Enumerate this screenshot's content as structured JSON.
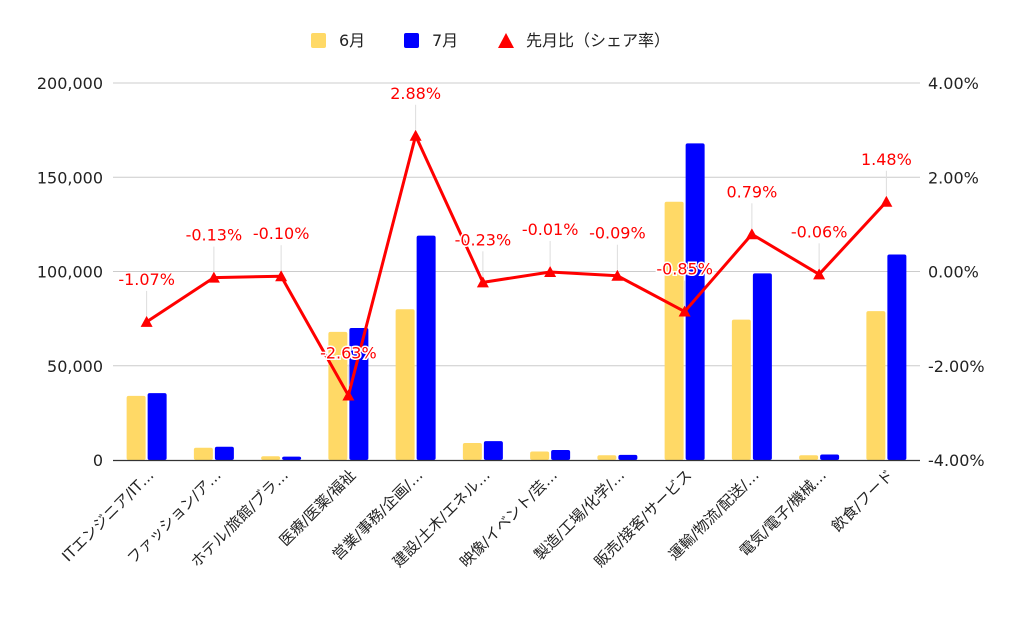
{
  "chart_data": {
    "type": "bar",
    "legend_position": "top",
    "grid": true,
    "categories": [
      "ITエンジニア/IT…",
      "ファッション/ア…",
      "ホテル/旅館/ブラ…",
      "医療/医薬/福祉",
      "営業/事務/企画/…",
      "建設/土木/エネル…",
      "映像/イベント/芸…",
      "製造/工場/化学/…",
      "販売/接客/サービス",
      "運輸/物流/配送/…",
      "電気/電子/機械…",
      "飲食/フード"
    ],
    "series": [
      {
        "name": "6月",
        "type": "bar",
        "axis": "left",
        "color": "#ffd966",
        "values": [
          34000,
          6500,
          2000,
          68000,
          80000,
          9000,
          4500,
          2500,
          137000,
          74500,
          2500,
          79000
        ]
      },
      {
        "name": "7月",
        "type": "bar",
        "axis": "left",
        "color": "#0000ff",
        "values": [
          35500,
          7000,
          1800,
          70000,
          119000,
          10000,
          5300,
          2700,
          168000,
          99000,
          2900,
          109000
        ]
      },
      {
        "name": "先月比（シェア率）",
        "type": "line",
        "axis": "right",
        "color": "#ff0000",
        "values": [
          -1.07,
          -0.13,
          -0.1,
          -2.63,
          2.88,
          -0.23,
          -0.01,
          -0.09,
          -0.85,
          0.79,
          -0.06,
          1.48
        ],
        "labels": [
          "-1.07%",
          "-0.13%",
          "-0.10%",
          "-2.63%",
          "2.88%",
          "-0.23%",
          "-0.01%",
          "-0.09%",
          "-0.85%",
          "0.79%",
          "-0.06%",
          "1.48%"
        ]
      }
    ],
    "y_left": {
      "lim": [
        0,
        200000
      ],
      "ticks": [
        0,
        50000,
        100000,
        150000,
        200000
      ],
      "tick_labels": [
        "0",
        "50,000",
        "100,000",
        "150,000",
        "200,000"
      ]
    },
    "y_right": {
      "lim": [
        -4,
        4
      ],
      "ticks": [
        -4,
        -2,
        0,
        2,
        4
      ],
      "tick_labels": [
        "-4.00%",
        "-2.00%",
        "0.00%",
        "2.00%",
        "4.00%"
      ]
    }
  }
}
